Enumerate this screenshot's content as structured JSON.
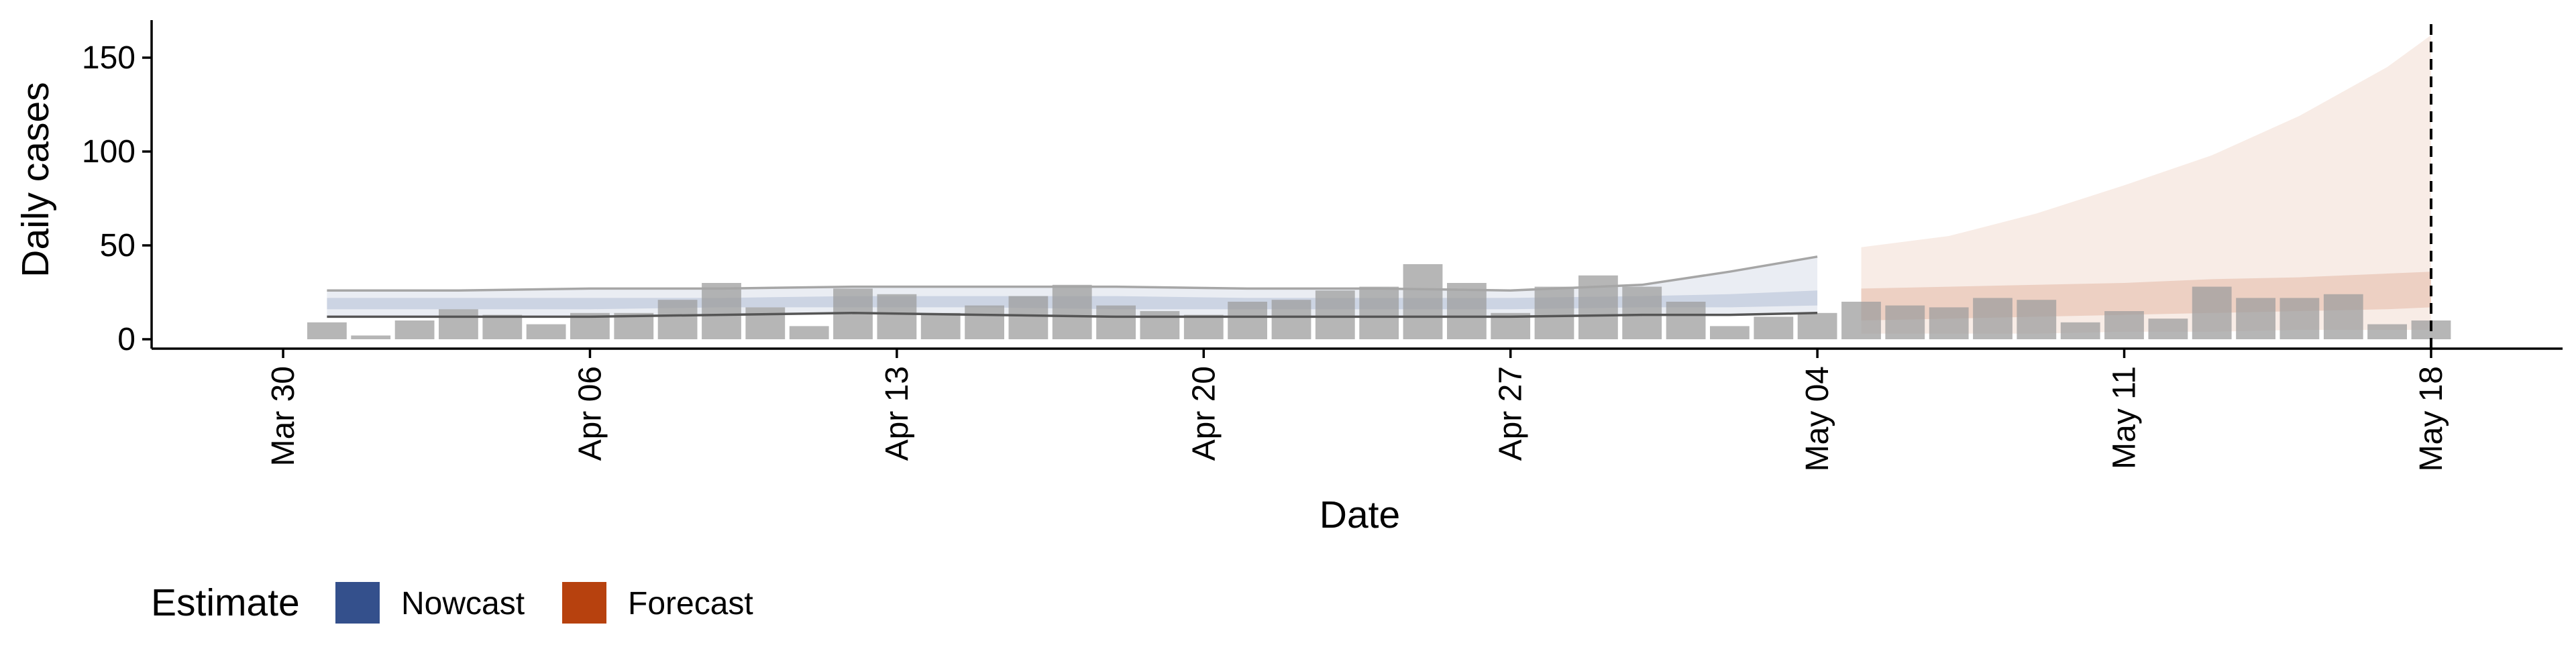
{
  "chart_data": {
    "type": "bar",
    "xlabel": "Date",
    "ylabel": "Daily cases",
    "ylim": [
      -5,
      170
    ],
    "yticks": [
      0,
      50,
      100,
      150
    ],
    "xticks": [
      "2020-03-30",
      "2020-04-06",
      "2020-04-13",
      "2020-04-20",
      "2020-04-27",
      "2020-05-04",
      "2020-05-11",
      "2020-05-18"
    ],
    "xtick_labels": [
      "Mar 30",
      "Apr 06",
      "Apr 13",
      "Apr 20",
      "Apr 27",
      "May 04",
      "May 11",
      "May 18"
    ],
    "xlim": [
      "2020-03-27",
      "2020-05-21"
    ],
    "grid": false,
    "legend_position": "bottom-left",
    "reference_line": {
      "x": "2020-05-18",
      "style": "dashed"
    },
    "colors": {
      "bars": "#9e9e9e",
      "nowcast": "#34508c",
      "forecast": "#b7410e",
      "line_outer": "#a6a6a6",
      "line_inner": "#555555"
    },
    "bars": {
      "x": [
        "2020-03-31",
        "2020-04-01",
        "2020-04-02",
        "2020-04-03",
        "2020-04-04",
        "2020-04-05",
        "2020-04-06",
        "2020-04-07",
        "2020-04-08",
        "2020-04-09",
        "2020-04-10",
        "2020-04-11",
        "2020-04-12",
        "2020-04-13",
        "2020-04-14",
        "2020-04-15",
        "2020-04-16",
        "2020-04-17",
        "2020-04-18",
        "2020-04-19",
        "2020-04-20",
        "2020-04-21",
        "2020-04-22",
        "2020-04-23",
        "2020-04-24",
        "2020-04-25",
        "2020-04-26",
        "2020-04-27",
        "2020-04-28",
        "2020-04-29",
        "2020-04-30",
        "2020-05-01",
        "2020-05-02",
        "2020-05-03",
        "2020-05-04",
        "2020-05-05",
        "2020-05-06",
        "2020-05-07",
        "2020-05-08",
        "2020-05-09",
        "2020-05-10",
        "2020-05-11",
        "2020-05-12",
        "2020-05-13",
        "2020-05-14",
        "2020-05-15",
        "2020-05-16",
        "2020-05-17",
        "2020-05-18"
      ],
      "values": [
        9,
        2,
        10,
        16,
        13,
        8,
        14,
        14,
        21,
        30,
        17,
        7,
        27,
        24,
        14,
        18,
        23,
        29,
        18,
        15,
        13,
        20,
        21,
        26,
        28,
        40,
        30,
        14,
        28,
        34,
        28,
        20,
        7,
        12,
        14,
        20,
        18,
        17,
        22,
        21,
        9,
        15,
        11,
        28,
        22,
        22,
        24,
        8,
        10
      ]
    },
    "series": [
      {
        "name": "Nowcast",
        "x": [
          "2020-03-31",
          "2020-04-03",
          "2020-04-06",
          "2020-04-09",
          "2020-04-12",
          "2020-04-15",
          "2020-04-18",
          "2020-04-21",
          "2020-04-24",
          "2020-04-27",
          "2020-04-30",
          "2020-05-02",
          "2020-05-04"
        ],
        "outer_lower": [
          12,
          12,
          12,
          13,
          14,
          13,
          12,
          12,
          12,
          12,
          13,
          13,
          14
        ],
        "outer_upper": [
          26,
          26,
          27,
          27,
          28,
          28,
          28,
          27,
          27,
          26,
          29,
          36,
          44
        ],
        "inner_lower": [
          16,
          16,
          16,
          17,
          17,
          17,
          16,
          16,
          16,
          16,
          17,
          17,
          18
        ],
        "inner_upper": [
          22,
          22,
          22,
          22,
          23,
          23,
          23,
          22,
          22,
          22,
          23,
          24,
          26
        ]
      },
      {
        "name": "Forecast",
        "x": [
          "2020-05-05",
          "2020-05-07",
          "2020-05-09",
          "2020-05-11",
          "2020-05-13",
          "2020-05-15",
          "2020-05-17",
          "2020-05-18"
        ],
        "outer_lower": [
          3,
          3,
          3,
          4,
          4,
          5,
          5,
          5
        ],
        "outer_upper": [
          49,
          55,
          67,
          82,
          98,
          119,
          145,
          162
        ],
        "inner_lower": [
          10,
          11,
          12,
          13,
          14,
          15,
          16,
          17
        ],
        "inner_upper": [
          27,
          28,
          29,
          30,
          32,
          33,
          35,
          36
        ]
      }
    ]
  },
  "legend": {
    "title": "Estimate",
    "items": [
      {
        "label": "Nowcast",
        "color": "#34508c"
      },
      {
        "label": "Forecast",
        "color": "#b7410e"
      }
    ]
  }
}
